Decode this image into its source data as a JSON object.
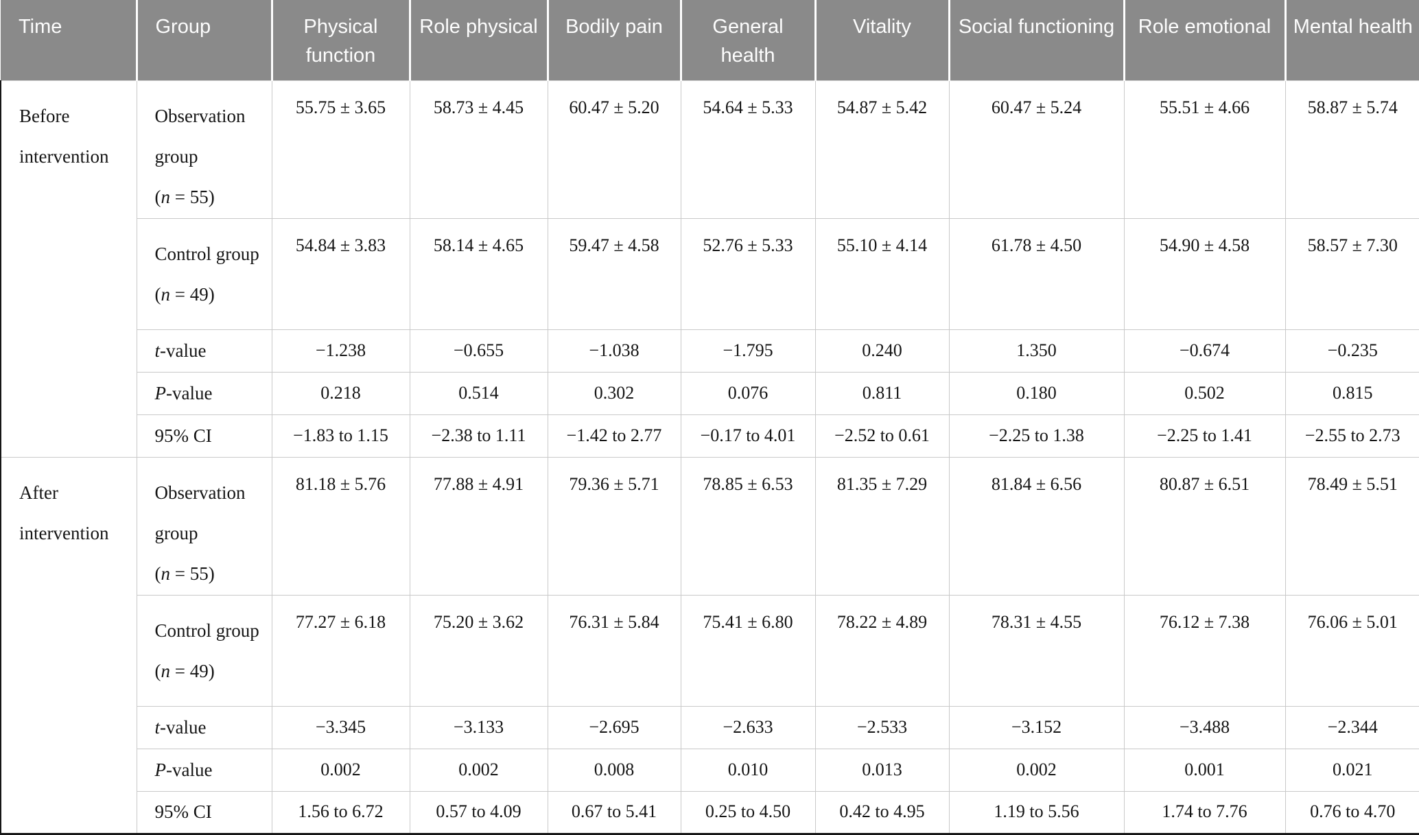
{
  "table": {
    "columns": [
      {
        "label": "Time"
      },
      {
        "label": "Group"
      },
      {
        "label": "Physical function"
      },
      {
        "label": "Role physical"
      },
      {
        "label": "Bodily pain"
      },
      {
        "label": "General health"
      },
      {
        "label": "Vitality"
      },
      {
        "label": "Social functioning"
      },
      {
        "label": "Role emotional"
      },
      {
        "label": "Mental health"
      }
    ],
    "sections": [
      {
        "time": "Before intervention",
        "rows": [
          {
            "type": "group",
            "label": "Observation group",
            "n_open": "(",
            "n_italic": "n",
            "n_rest": " = 55)",
            "values": [
              "55.75 ± 3.65",
              "58.73 ± 4.45",
              "60.47 ± 5.20",
              "54.64 ± 5.33",
              "54.87 ± 5.42",
              "60.47 ± 5.24",
              "55.51 ± 4.66",
              "58.87 ± 5.74"
            ]
          },
          {
            "type": "group",
            "label": "Control group",
            "n_open": "(",
            "n_italic": "n",
            "n_rest": " = 49)",
            "values": [
              "54.84 ± 3.83",
              "58.14 ± 4.65",
              "59.47 ± 4.58",
              "52.76 ± 5.33",
              "55.10 ± 4.14",
              "61.78 ± 4.50",
              "54.90 ± 4.58",
              "58.57 ± 7.30"
            ]
          },
          {
            "type": "stat",
            "label_italic": "t",
            "label_rest": "-value",
            "values": [
              "−1.238",
              "−0.655",
              "−1.038",
              "−1.795",
              "0.240",
              "1.350",
              "−0.674",
              "−0.235"
            ]
          },
          {
            "type": "stat",
            "label_italic": "P",
            "label_rest": "-value",
            "values": [
              "0.218",
              "0.514",
              "0.302",
              "0.076",
              "0.811",
              "0.180",
              "0.502",
              "0.815"
            ]
          },
          {
            "type": "stat",
            "label": "95% CI",
            "values": [
              "−1.83 to 1.15",
              "−2.38 to 1.11",
              "−1.42 to 2.77",
              "−0.17 to 4.01",
              "−2.52 to 0.61",
              "−2.25 to 1.38",
              "−2.25 to 1.41",
              "−2.55 to 2.73"
            ]
          }
        ]
      },
      {
        "time": "After intervention",
        "rows": [
          {
            "type": "group",
            "label": "Observation group",
            "n_open": "(",
            "n_italic": "n",
            "n_rest": " = 55)",
            "values": [
              "81.18 ± 5.76",
              "77.88 ± 4.91",
              "79.36 ± 5.71",
              "78.85 ± 6.53",
              "81.35 ± 7.29",
              "81.84 ± 6.56",
              "80.87 ± 6.51",
              "78.49 ± 5.51"
            ]
          },
          {
            "type": "group",
            "label": "Control group",
            "n_open": "(",
            "n_italic": "n",
            "n_rest": " = 49)",
            "values": [
              "77.27 ± 6.18",
              "75.20 ± 3.62",
              "76.31 ± 5.84",
              "75.41 ± 6.80",
              "78.22 ± 4.89",
              "78.31 ± 4.55",
              "76.12 ± 7.38",
              "76.06 ± 5.01"
            ]
          },
          {
            "type": "stat",
            "label_italic": "t",
            "label_rest": "-value",
            "values": [
              "−3.345",
              "−3.133",
              "−2.695",
              "−2.633",
              "−2.533",
              "−3.152",
              "−3.488",
              "−2.344"
            ]
          },
          {
            "type": "stat",
            "label_italic": "P",
            "label_rest": "-value",
            "values": [
              "0.002",
              "0.002",
              "0.008",
              "0.010",
              "0.013",
              "0.002",
              "0.001",
              "0.021"
            ]
          },
          {
            "type": "stat",
            "label": "95% CI",
            "values": [
              "1.56 to 6.72",
              "0.57 to 4.09",
              "0.67 to 5.41",
              "0.25 to 4.50",
              "0.42 to 4.95",
              "1.19 to 5.56",
              "1.74 to 7.76",
              "0.76 to 4.70"
            ]
          }
        ]
      }
    ],
    "colors": {
      "header_bg": "#8a8a8a",
      "header_text": "#fdfdfd",
      "grid_line": "#c9c9c9",
      "strong_line": "#161616"
    }
  }
}
